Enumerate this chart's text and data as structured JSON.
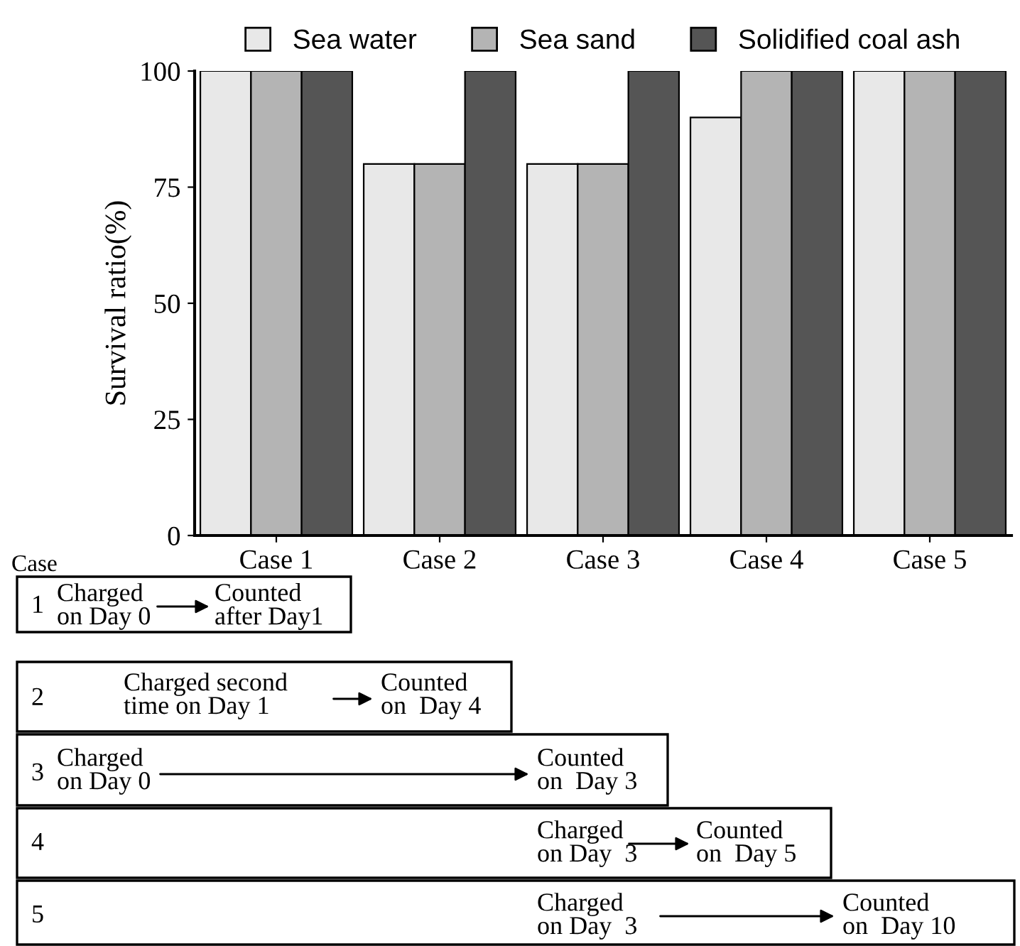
{
  "chart_data": {
    "type": "bar",
    "ylabel": "Survival ratio(%)",
    "categories": [
      "Case 1",
      "Case 2",
      "Case 3",
      "Case 4",
      "Case 5"
    ],
    "series": [
      {
        "name": "Sea water",
        "color": "#e8e8e8",
        "values": [
          100,
          80,
          80,
          90,
          100
        ]
      },
      {
        "name": "Sea sand",
        "color": "#b4b4b4",
        "values": [
          100,
          80,
          80,
          100,
          100
        ]
      },
      {
        "name": "Solidified coal ash",
        "color": "#555555",
        "values": [
          100,
          100,
          100,
          100,
          100
        ]
      }
    ],
    "ylim": [
      0,
      100
    ],
    "yticks": [
      0,
      25,
      50,
      75,
      100
    ],
    "grid": false,
    "legend": "top",
    "annotations": [
      "Case",
      "1",
      "Charged\non Day 0",
      "Counted\nafter Day1",
      "2",
      "Charged second\ntime on Day 1",
      "Counted\non  Day 4",
      "3",
      "Charged\non Day 0",
      "Counted\non  Day 3",
      "4",
      "Charged\non Day  3",
      "Counted\non  Day 5",
      "5",
      "Charged\non Day  3",
      "Counted\non  Day 10"
    ]
  }
}
